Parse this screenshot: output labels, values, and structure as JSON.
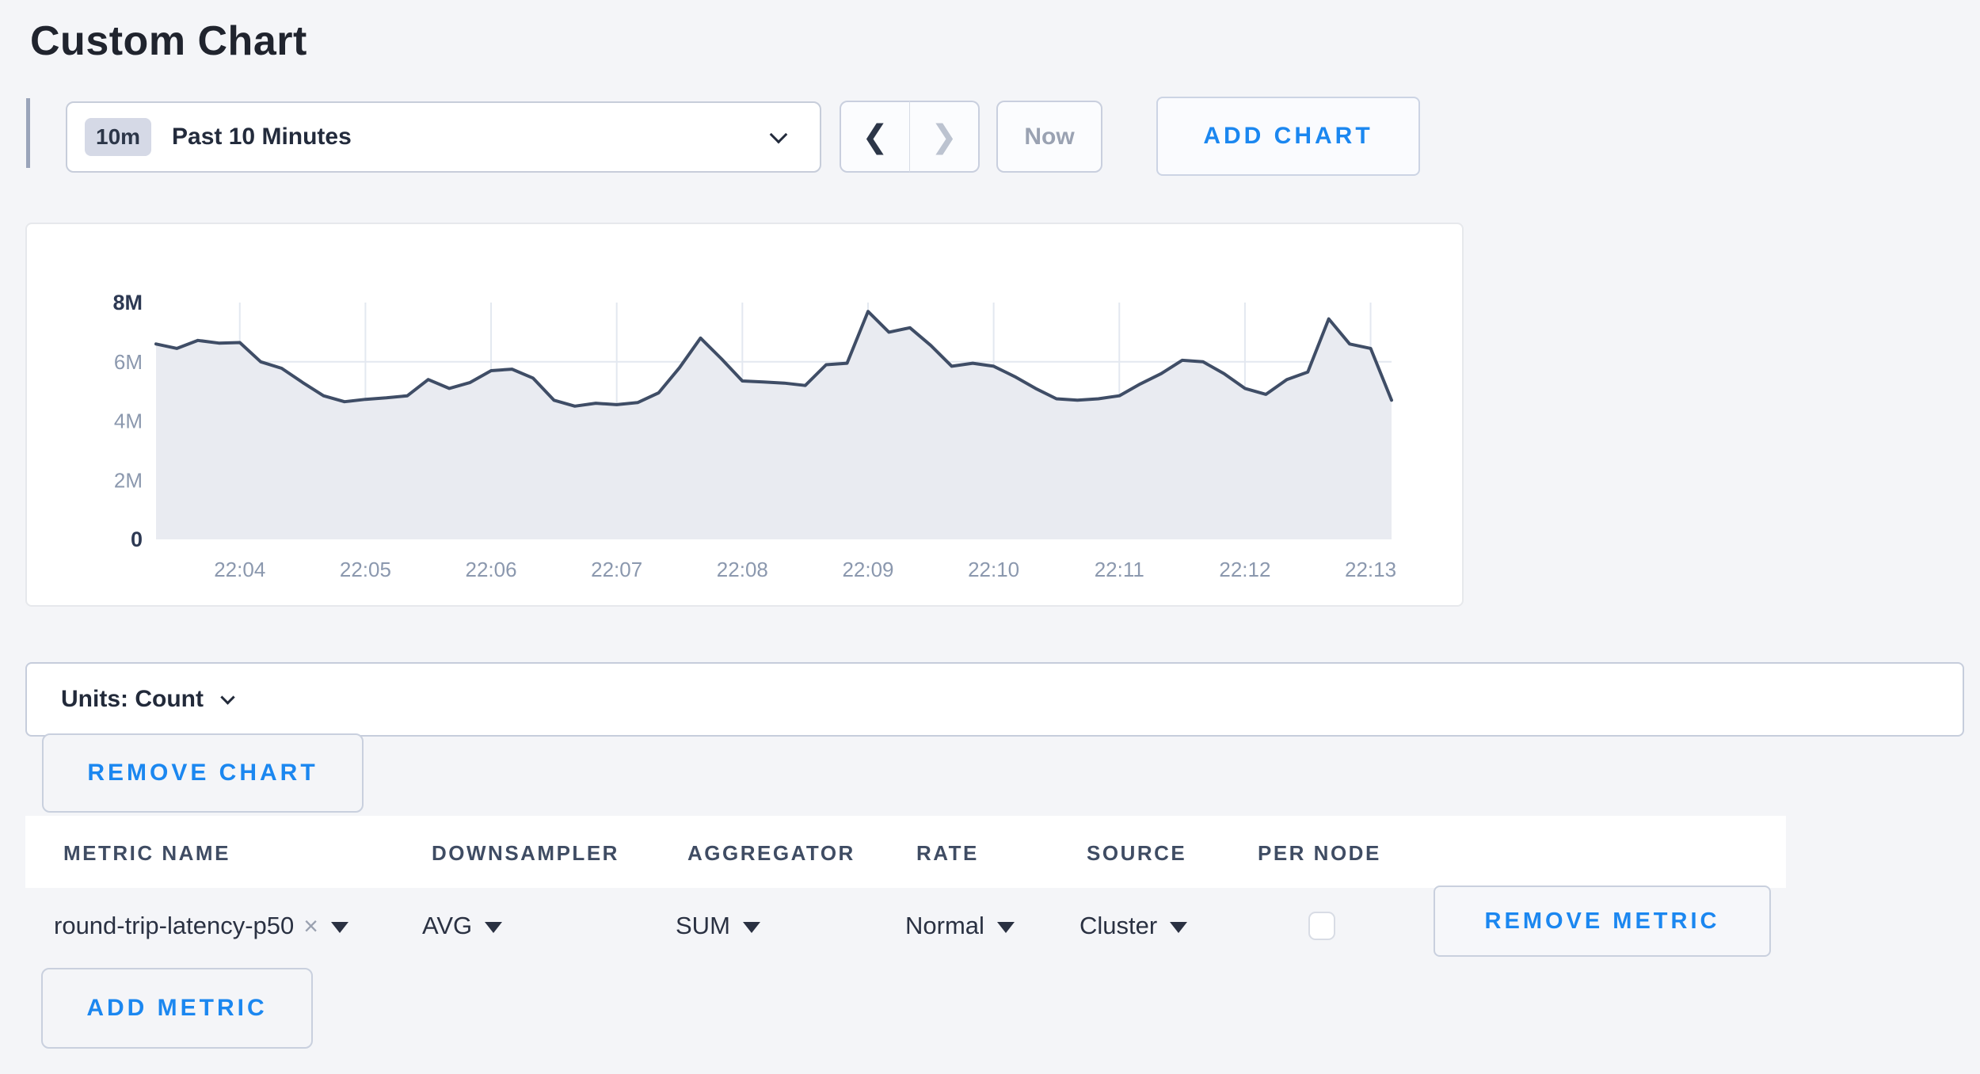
{
  "page": {
    "title": "Custom Chart"
  },
  "toolbar": {
    "range_badge": "10m",
    "range_label": "Past 10 Minutes",
    "prev_glyph": "❮",
    "next_glyph": "❯",
    "now_label": "Now",
    "add_chart_label": "ADD CHART"
  },
  "units_bar": {
    "label": "Units: Count"
  },
  "remove_chart_label": "REMOVE CHART",
  "table": {
    "columns": [
      "METRIC NAME",
      "DOWNSAMPLER",
      "AGGREGATOR",
      "RATE",
      "SOURCE",
      "PER NODE"
    ],
    "row": {
      "metric_name": "round-trip-latency-p50",
      "clear_icon": "×",
      "downsampler": "AVG",
      "aggregator": "SUM",
      "rate": "Normal",
      "source": "Cluster",
      "per_node_checked": false,
      "remove_label": "REMOVE METRIC"
    },
    "add_metric_label": "ADD METRIC"
  },
  "colors": {
    "accent_blue": "#1b87f0",
    "line": "#3f4d66",
    "area_fill": "#e9ebf1",
    "grid": "#e3e8f0",
    "axis_strong": "#2d3953",
    "axis_muted": "#8b98ae",
    "page_bg": "#f4f5f8"
  },
  "chart_data": {
    "type": "area",
    "title": "",
    "xlabel": "",
    "ylabel": "Count",
    "legend": "none",
    "grid": true,
    "ylim_millions": [
      0,
      8
    ],
    "x_start_time": "22:03:20",
    "x_interval_seconds": 10,
    "x_ticks": [
      "22:04",
      "22:05",
      "22:06",
      "22:07",
      "22:08",
      "22:09",
      "22:10",
      "22:11",
      "22:12",
      "22:13"
    ],
    "tick_indices": [
      4,
      10,
      16,
      22,
      28,
      34,
      40,
      46,
      52,
      58
    ],
    "y_ticks": [
      {
        "label": "8M",
        "value_millions": 8,
        "strong": true
      },
      {
        "label": "6M",
        "value_millions": 6,
        "strong": false
      },
      {
        "label": "4M",
        "value_millions": 4,
        "strong": false
      },
      {
        "label": "2M",
        "value_millions": 2,
        "strong": false
      },
      {
        "label": "0",
        "value_millions": 0,
        "strong": true
      }
    ],
    "series": [
      {
        "name": "round-trip-latency-p50",
        "values_millions": [
          6.6,
          6.45,
          6.72,
          6.63,
          6.65,
          6.0,
          5.78,
          5.3,
          4.85,
          4.65,
          4.73,
          4.78,
          4.85,
          5.4,
          5.1,
          5.3,
          5.7,
          5.75,
          5.45,
          4.7,
          4.5,
          4.6,
          4.55,
          4.62,
          4.95,
          5.8,
          6.8,
          6.1,
          5.35,
          5.32,
          5.28,
          5.2,
          5.9,
          5.95,
          7.7,
          7.0,
          7.15,
          6.55,
          5.85,
          5.95,
          5.85,
          5.5,
          5.1,
          4.75,
          4.7,
          4.75,
          4.85,
          5.25,
          5.6,
          6.05,
          6.0,
          5.6,
          5.1,
          4.9,
          5.4,
          5.65,
          7.45,
          6.6,
          6.45,
          4.7
        ]
      }
    ]
  }
}
